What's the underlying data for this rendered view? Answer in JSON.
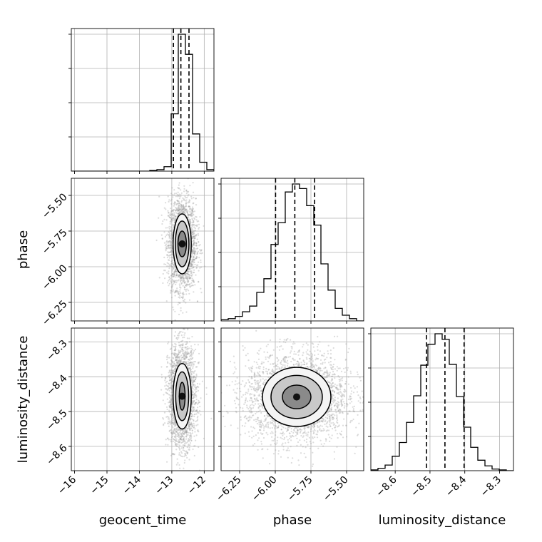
{
  "chart_data": {
    "type": "corner",
    "title": "",
    "parameters": [
      "geocent_time",
      "phase",
      "luminosity_distance"
    ],
    "axis_labels": {
      "geocent_time": "geocent_time",
      "phase": "phase",
      "luminosity_distance": "luminosity_distance"
    },
    "ranges": {
      "geocent_time": [
        -16.1,
        -11.7
      ],
      "phase": [
        -6.38,
        -5.38
      ],
      "luminosity_distance": [
        -8.67,
        -8.26
      ]
    },
    "ticks": {
      "geocent_time": [
        -16,
        -15,
        -14,
        -13,
        -12
      ],
      "phase": [
        -6.25,
        -6.0,
        -5.75,
        -5.5
      ],
      "luminosity_distance": [
        -8.6,
        -8.5,
        -8.4,
        -8.3
      ]
    },
    "tick_labels": {
      "geocent_time": [
        "−16",
        "−15",
        "−14",
        "−13",
        "−12"
      ],
      "phase": [
        "−6.25",
        "−6.00",
        "−5.75",
        "−5.50"
      ],
      "luminosity_distance": [
        "−8.6",
        "−8.5",
        "−8.4",
        "−8.3"
      ]
    },
    "quantiles": {
      "geocent_time": [
        -12.95,
        -12.72,
        -12.47
      ],
      "phase": [
        -5.998,
        -5.863,
        -5.724
      ],
      "luminosity_distance": [
        -8.51,
        -8.457,
        -8.402
      ]
    },
    "histograms": {
      "geocent_time": {
        "edges": [
          -16.1,
          -15.88,
          -15.66,
          -15.44,
          -15.22,
          -15.0,
          -14.78,
          -14.56,
          -14.34,
          -14.12,
          -13.9,
          -13.68,
          -13.46,
          -13.24,
          -13.02,
          -12.8,
          -12.58,
          -12.36,
          -12.14,
          -11.92,
          -11.7
        ],
        "counts": [
          0,
          0,
          0,
          0,
          0,
          0,
          0,
          0,
          0,
          0,
          0,
          1,
          2,
          6,
          77,
          184,
          157,
          50,
          12,
          2
        ]
      },
      "phase": {
        "edges": [
          -6.38,
          -6.33,
          -6.28,
          -6.23,
          -6.18,
          -6.13,
          -6.08,
          -6.03,
          -5.98,
          -5.93,
          -5.88,
          -5.83,
          -5.78,
          -5.73,
          -5.68,
          -5.63,
          -5.58,
          -5.53,
          -5.48,
          -5.43,
          -5.38
        ],
        "counts": [
          1,
          2,
          4,
          8,
          13,
          25,
          37,
          67,
          86,
          113,
          120,
          116,
          101,
          84,
          50,
          27,
          11,
          5,
          2,
          0
        ]
      },
      "luminosity_distance": {
        "edges": [
          -8.67,
          -8.6495,
          -8.629,
          -8.6085,
          -8.588,
          -8.5675,
          -8.547,
          -8.5265,
          -8.506,
          -8.4855,
          -8.465,
          -8.4445,
          -8.424,
          -8.4035,
          -8.383,
          -8.3625,
          -8.342,
          -8.3215,
          -8.301,
          -8.2805,
          -8.26
        ],
        "counts": [
          1,
          3,
          7,
          18,
          35,
          60,
          93,
          131,
          157,
          170,
          163,
          132,
          92,
          54,
          29,
          13,
          6,
          2,
          1,
          0
        ]
      }
    },
    "contours": {
      "phase_vs_geocent_time": {
        "center": [
          -12.68,
          -5.84
        ],
        "levels": [
          {
            "sx": 0.28,
            "sy": 0.21
          },
          {
            "sx": 0.21,
            "sy": 0.16
          },
          {
            "sx": 0.13,
            "sy": 0.09
          }
        ]
      },
      "luminosity_distance_vs_geocent_time": {
        "center": [
          -12.68,
          -8.456
        ],
        "levels": [
          {
            "sx": 0.28,
            "sy": 0.094
          },
          {
            "sx": 0.2,
            "sy": 0.07
          },
          {
            "sx": 0.09,
            "sy": 0.04
          }
        ]
      },
      "luminosity_distance_vs_phase": {
        "center": [
          -5.85,
          -8.458
        ],
        "levels": [
          {
            "sx": 0.24,
            "sy": 0.085
          },
          {
            "sx": 0.18,
            "sy": 0.062
          },
          {
            "sx": 0.1,
            "sy": 0.034
          }
        ]
      }
    },
    "grid": true,
    "quantile_line_style": "dashed",
    "scatter_color": "#9a9a9a",
    "line_color": "#000000"
  }
}
